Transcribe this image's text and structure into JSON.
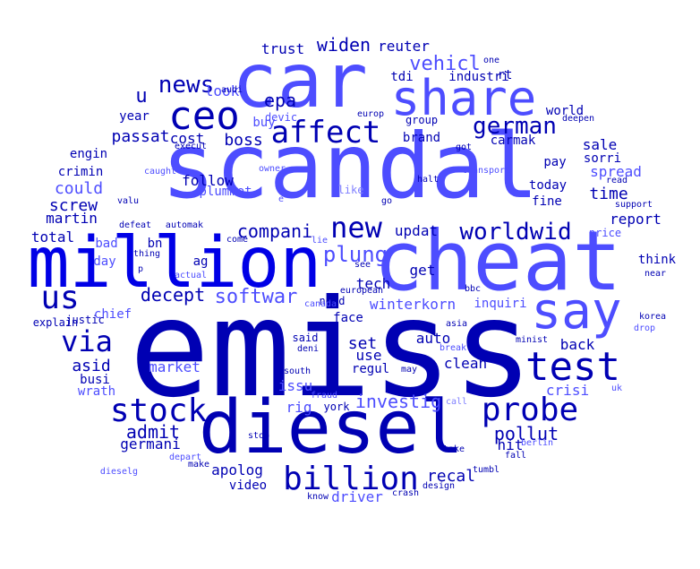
{
  "colors": {
    "dark": "#0000b3",
    "mid": "#0000e6",
    "light": "#4d4dff",
    "pale": "#8080ff"
  },
  "words": [
    {
      "text": "emiss",
      "tone": "dark"
    },
    {
      "text": "scandal",
      "tone": "light"
    },
    {
      "text": "diesel",
      "tone": "dark"
    },
    {
      "text": "cheat",
      "tone": "light"
    },
    {
      "text": "million",
      "tone": "mid"
    },
    {
      "text": "car",
      "tone": "light"
    },
    {
      "text": "share",
      "tone": "light"
    },
    {
      "text": "say",
      "tone": "light"
    },
    {
      "text": "ceo",
      "tone": "dark"
    },
    {
      "text": "test",
      "tone": "dark"
    },
    {
      "text": "us",
      "tone": "dark"
    },
    {
      "text": "billion",
      "tone": "dark"
    },
    {
      "text": "probe",
      "tone": "dark"
    },
    {
      "text": "stock",
      "tone": "dark"
    },
    {
      "text": "affect",
      "tone": "dark"
    },
    {
      "text": "new",
      "tone": "dark"
    },
    {
      "text": "via",
      "tone": "dark"
    },
    {
      "text": "news",
      "tone": "dark"
    },
    {
      "text": "worldwid",
      "tone": "dark"
    },
    {
      "text": "german",
      "tone": "dark"
    },
    {
      "text": "plung",
      "tone": "light"
    },
    {
      "text": "softwar",
      "tone": "light"
    },
    {
      "text": "vehicl",
      "tone": "light"
    },
    {
      "text": "u",
      "tone": "dark"
    },
    {
      "text": "decept",
      "tone": "dark"
    },
    {
      "text": "compani",
      "tone": "dark"
    },
    {
      "text": "investig",
      "tone": "light"
    },
    {
      "text": "epa",
      "tone": "dark"
    },
    {
      "text": "widen",
      "tone": "dark"
    },
    {
      "text": "admit",
      "tone": "dark"
    },
    {
      "text": "pollut",
      "tone": "dark"
    },
    {
      "text": "boss",
      "tone": "dark"
    },
    {
      "text": "passat",
      "tone": "dark"
    },
    {
      "text": "could",
      "tone": "light"
    },
    {
      "text": "screw",
      "tone": "dark"
    },
    {
      "text": "asid",
      "tone": "dark"
    },
    {
      "text": "time",
      "tone": "dark"
    },
    {
      "text": "set",
      "tone": "dark"
    },
    {
      "text": "recal",
      "tone": "dark"
    },
    {
      "text": "winterkorn",
      "tone": "light"
    },
    {
      "text": "tech",
      "tone": "dark"
    },
    {
      "text": "follow",
      "tone": "dark"
    },
    {
      "text": "trust",
      "tone": "dark"
    },
    {
      "text": "reuter",
      "tone": "dark"
    },
    {
      "text": "martin",
      "tone": "dark"
    },
    {
      "text": "total",
      "tone": "dark"
    },
    {
      "text": "cost",
      "tone": "dark"
    },
    {
      "text": "look",
      "tone": "light"
    },
    {
      "text": "report",
      "tone": "dark"
    },
    {
      "text": "spread",
      "tone": "light"
    },
    {
      "text": "sale",
      "tone": "dark"
    },
    {
      "text": "crisi",
      "tone": "light"
    },
    {
      "text": "updat",
      "tone": "dark"
    },
    {
      "text": "get",
      "tone": "dark"
    },
    {
      "text": "auto",
      "tone": "dark"
    },
    {
      "text": "back",
      "tone": "dark"
    },
    {
      "text": "issu",
      "tone": "light"
    },
    {
      "text": "rig",
      "tone": "light"
    },
    {
      "text": "use",
      "tone": "dark"
    },
    {
      "text": "clean",
      "tone": "dark"
    },
    {
      "text": "hit",
      "tone": "dark"
    },
    {
      "text": "germani",
      "tone": "dark"
    },
    {
      "text": "market",
      "tone": "light"
    },
    {
      "text": "driver",
      "tone": "light"
    },
    {
      "text": "apolog",
      "tone": "dark"
    },
    {
      "text": "busi",
      "tone": "dark"
    },
    {
      "text": "ag",
      "tone": "dark"
    },
    {
      "text": "bn",
      "tone": "dark"
    },
    {
      "text": "face",
      "tone": "dark"
    },
    {
      "text": "regul",
      "tone": "dark"
    },
    {
      "text": "year",
      "tone": "dark"
    },
    {
      "text": "engin",
      "tone": "dark"
    },
    {
      "text": "crimin",
      "tone": "dark"
    },
    {
      "text": "chief",
      "tone": "light"
    },
    {
      "text": "think",
      "tone": "dark"
    },
    {
      "text": "world",
      "tone": "dark"
    },
    {
      "text": "brand",
      "tone": "dark"
    },
    {
      "text": "inquiri",
      "tone": "light"
    },
    {
      "text": "video",
      "tone": "dark"
    },
    {
      "text": "carmak",
      "tone": "dark"
    },
    {
      "text": "sorri",
      "tone": "dark"
    },
    {
      "text": "fine",
      "tone": "dark"
    },
    {
      "text": "today",
      "tone": "dark"
    },
    {
      "text": "pay",
      "tone": "dark"
    },
    {
      "text": "industri",
      "tone": "dark"
    },
    {
      "text": "buy",
      "tone": "light"
    },
    {
      "text": "tdi",
      "tone": "dark"
    },
    {
      "text": "rt",
      "tone": "dark"
    },
    {
      "text": "day",
      "tone": "light"
    },
    {
      "text": "bad",
      "tone": "light"
    },
    {
      "text": "plummet",
      "tone": "light"
    },
    {
      "text": "price",
      "tone": "light"
    },
    {
      "text": "york",
      "tone": "dark"
    },
    {
      "text": "said",
      "tone": "dark"
    },
    {
      "text": "wrath",
      "tone": "light"
    },
    {
      "text": "explain",
      "tone": "dark"
    },
    {
      "text": "justic",
      "tone": "dark"
    },
    {
      "text": "need",
      "tone": "dark"
    },
    {
      "text": "devic",
      "tone": "light"
    },
    {
      "text": "group",
      "tone": "dark"
    },
    {
      "text": "one",
      "tone": "dark"
    },
    {
      "text": "audi",
      "tone": "dark"
    },
    {
      "text": "europ",
      "tone": "dark"
    },
    {
      "text": "execut",
      "tone": "dark"
    },
    {
      "text": "deepen",
      "tone": "dark"
    },
    {
      "text": "got",
      "tone": "dark"
    },
    {
      "text": "caught",
      "tone": "light"
    },
    {
      "text": "owner",
      "tone": "light"
    },
    {
      "text": "transport",
      "tone": "light"
    },
    {
      "text": "read",
      "tone": "dark"
    },
    {
      "text": "halt",
      "tone": "dark"
    },
    {
      "text": "valu",
      "tone": "dark"
    },
    {
      "text": "like",
      "tone": "pale"
    },
    {
      "text": "support",
      "tone": "dark"
    },
    {
      "text": "e",
      "tone": "light"
    },
    {
      "text": "go",
      "tone": "dark"
    },
    {
      "text": "automak",
      "tone": "dark"
    },
    {
      "text": "defeat",
      "tone": "dark"
    },
    {
      "text": "come",
      "tone": "dark"
    },
    {
      "text": "lie",
      "tone": "light"
    },
    {
      "text": "thing",
      "tone": "dark"
    },
    {
      "text": "p",
      "tone": "dark"
    },
    {
      "text": "see",
      "tone": "dark"
    },
    {
      "text": "actual",
      "tone": "light"
    },
    {
      "text": "near",
      "tone": "dark"
    },
    {
      "text": "european",
      "tone": "dark"
    },
    {
      "text": "bbc",
      "tone": "dark"
    },
    {
      "text": "canada",
      "tone": "light"
    },
    {
      "text": "asia",
      "tone": "dark"
    },
    {
      "text": "korea",
      "tone": "dark"
    },
    {
      "text": "drop",
      "tone": "light"
    },
    {
      "text": "deni",
      "tone": "dark"
    },
    {
      "text": "break",
      "tone": "light"
    },
    {
      "text": "minist",
      "tone": "dark"
    },
    {
      "text": "south",
      "tone": "dark"
    },
    {
      "text": "may",
      "tone": "dark"
    },
    {
      "text": "uk",
      "tone": "light"
    },
    {
      "text": "fraud",
      "tone": "light"
    },
    {
      "text": "call",
      "tone": "pale"
    },
    {
      "text": "stop",
      "tone": "dark"
    },
    {
      "text": "take",
      "tone": "dark"
    },
    {
      "text": "berlin",
      "tone": "light"
    },
    {
      "text": "fall",
      "tone": "dark"
    },
    {
      "text": "depart",
      "tone": "light"
    },
    {
      "text": "make",
      "tone": "dark"
    },
    {
      "text": "dieselg",
      "tone": "light"
    },
    {
      "text": "tumbl",
      "tone": "dark"
    },
    {
      "text": "design",
      "tone": "dark"
    },
    {
      "text": "know",
      "tone": "dark"
    },
    {
      "text": "crash",
      "tone": "dark"
    }
  ]
}
